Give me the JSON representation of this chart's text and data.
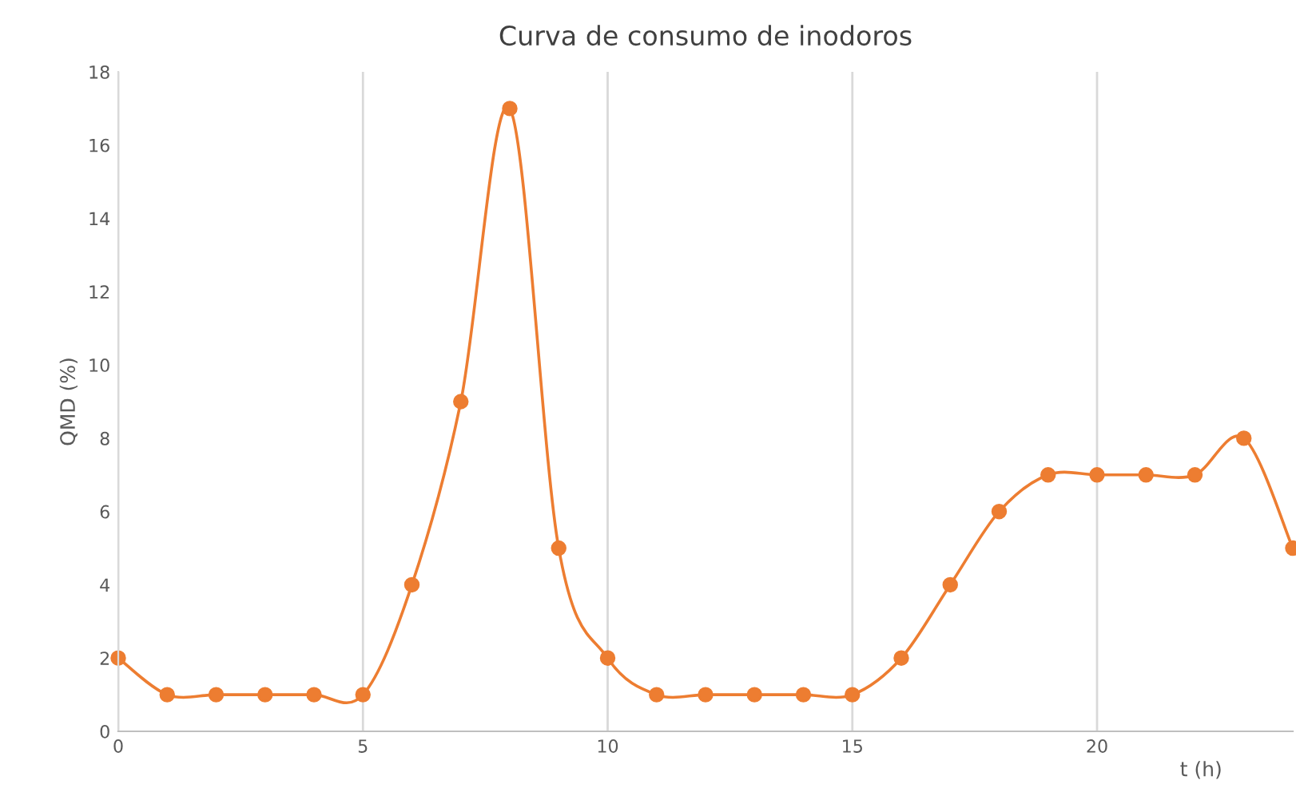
{
  "chart_data": {
    "type": "line",
    "title": "Curva de consumo de inodoros",
    "xlabel": "t (h)",
    "ylabel": "QMD (%)",
    "x": [
      0,
      1,
      2,
      3,
      4,
      5,
      6,
      7,
      8,
      9,
      10,
      11,
      12,
      13,
      14,
      15,
      16,
      17,
      18,
      19,
      20,
      21,
      22,
      23,
      24
    ],
    "series": [
      {
        "color": "#ed7d31",
        "values": [
          2,
          1,
          1,
          1,
          1,
          1,
          4,
          9,
          17,
          5,
          2,
          1,
          1,
          1,
          1,
          1,
          2,
          4,
          6,
          7,
          7,
          7,
          7,
          8,
          5
        ]
      }
    ],
    "xlim": [
      0,
      24
    ],
    "xticks": [
      0,
      5,
      10,
      15,
      20
    ],
    "ylim": [
      0,
      18
    ],
    "yticks": [
      0,
      2,
      4,
      6,
      8,
      10,
      12,
      14,
      16,
      18
    ],
    "grid": "x",
    "marker": "circle",
    "line_style": "solid"
  }
}
